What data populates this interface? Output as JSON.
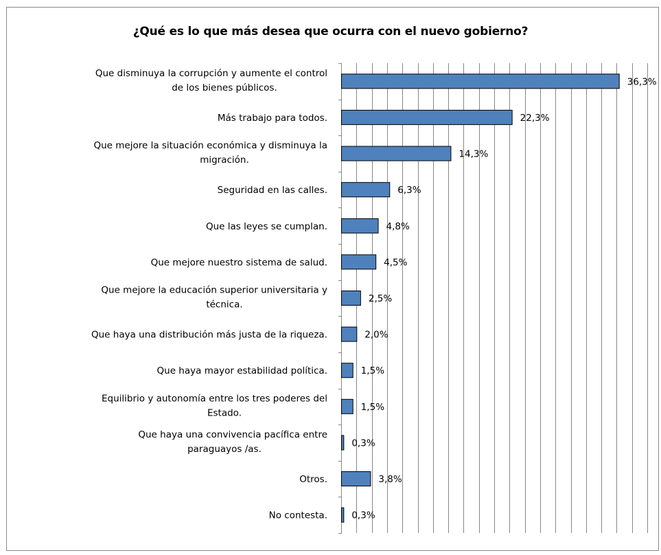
{
  "chart_data": {
    "type": "bar",
    "orientation": "horizontal",
    "title": "¿Qué es lo que más desea que ocurra con el nuevo gobierno?",
    "xlabel": "",
    "ylabel": "",
    "xlim": [
      0,
      40
    ],
    "grid": "vertical",
    "legend": "none",
    "colors": {
      "bar": "#4F81BD",
      "bar_border": "#000000",
      "grid": "#868686"
    },
    "categories": [
      [
        "Que disminuya la corrupción y aumente el control",
        "de los bienes públicos."
      ],
      [
        "Más trabajo para todos."
      ],
      [
        "Que mejore la situación económica y disminuya la",
        "migración."
      ],
      [
        "Seguridad en las calles."
      ],
      [
        "Que las leyes se cumplan."
      ],
      [
        "Que mejore nuestro sistema de salud."
      ],
      [
        "Que mejore la educación superior universitaria y",
        "técnica."
      ],
      [
        "Que haya una distribución más justa de la riqueza."
      ],
      [
        "Que haya mayor estabilidad política."
      ],
      [
        "Equilibrio y autonomía entre los tres poderes del",
        "Estado."
      ],
      [
        "Que haya una convivencia pacífica entre",
        "paraguayos /as."
      ],
      [
        "Otros."
      ],
      [
        "No contesta."
      ]
    ],
    "values": [
      36.3,
      22.3,
      14.3,
      6.3,
      4.8,
      4.5,
      2.5,
      2.0,
      1.5,
      1.5,
      0.3,
      3.8,
      0.3
    ],
    "value_labels": [
      "36,3%",
      "22,3%",
      "14,3%",
      "6,3%",
      "4,8%",
      "4,5%",
      "2,5%",
      "2,0%",
      "1,5%",
      "1,5%",
      "0,3%",
      "3,8%",
      "0,3%"
    ]
  }
}
